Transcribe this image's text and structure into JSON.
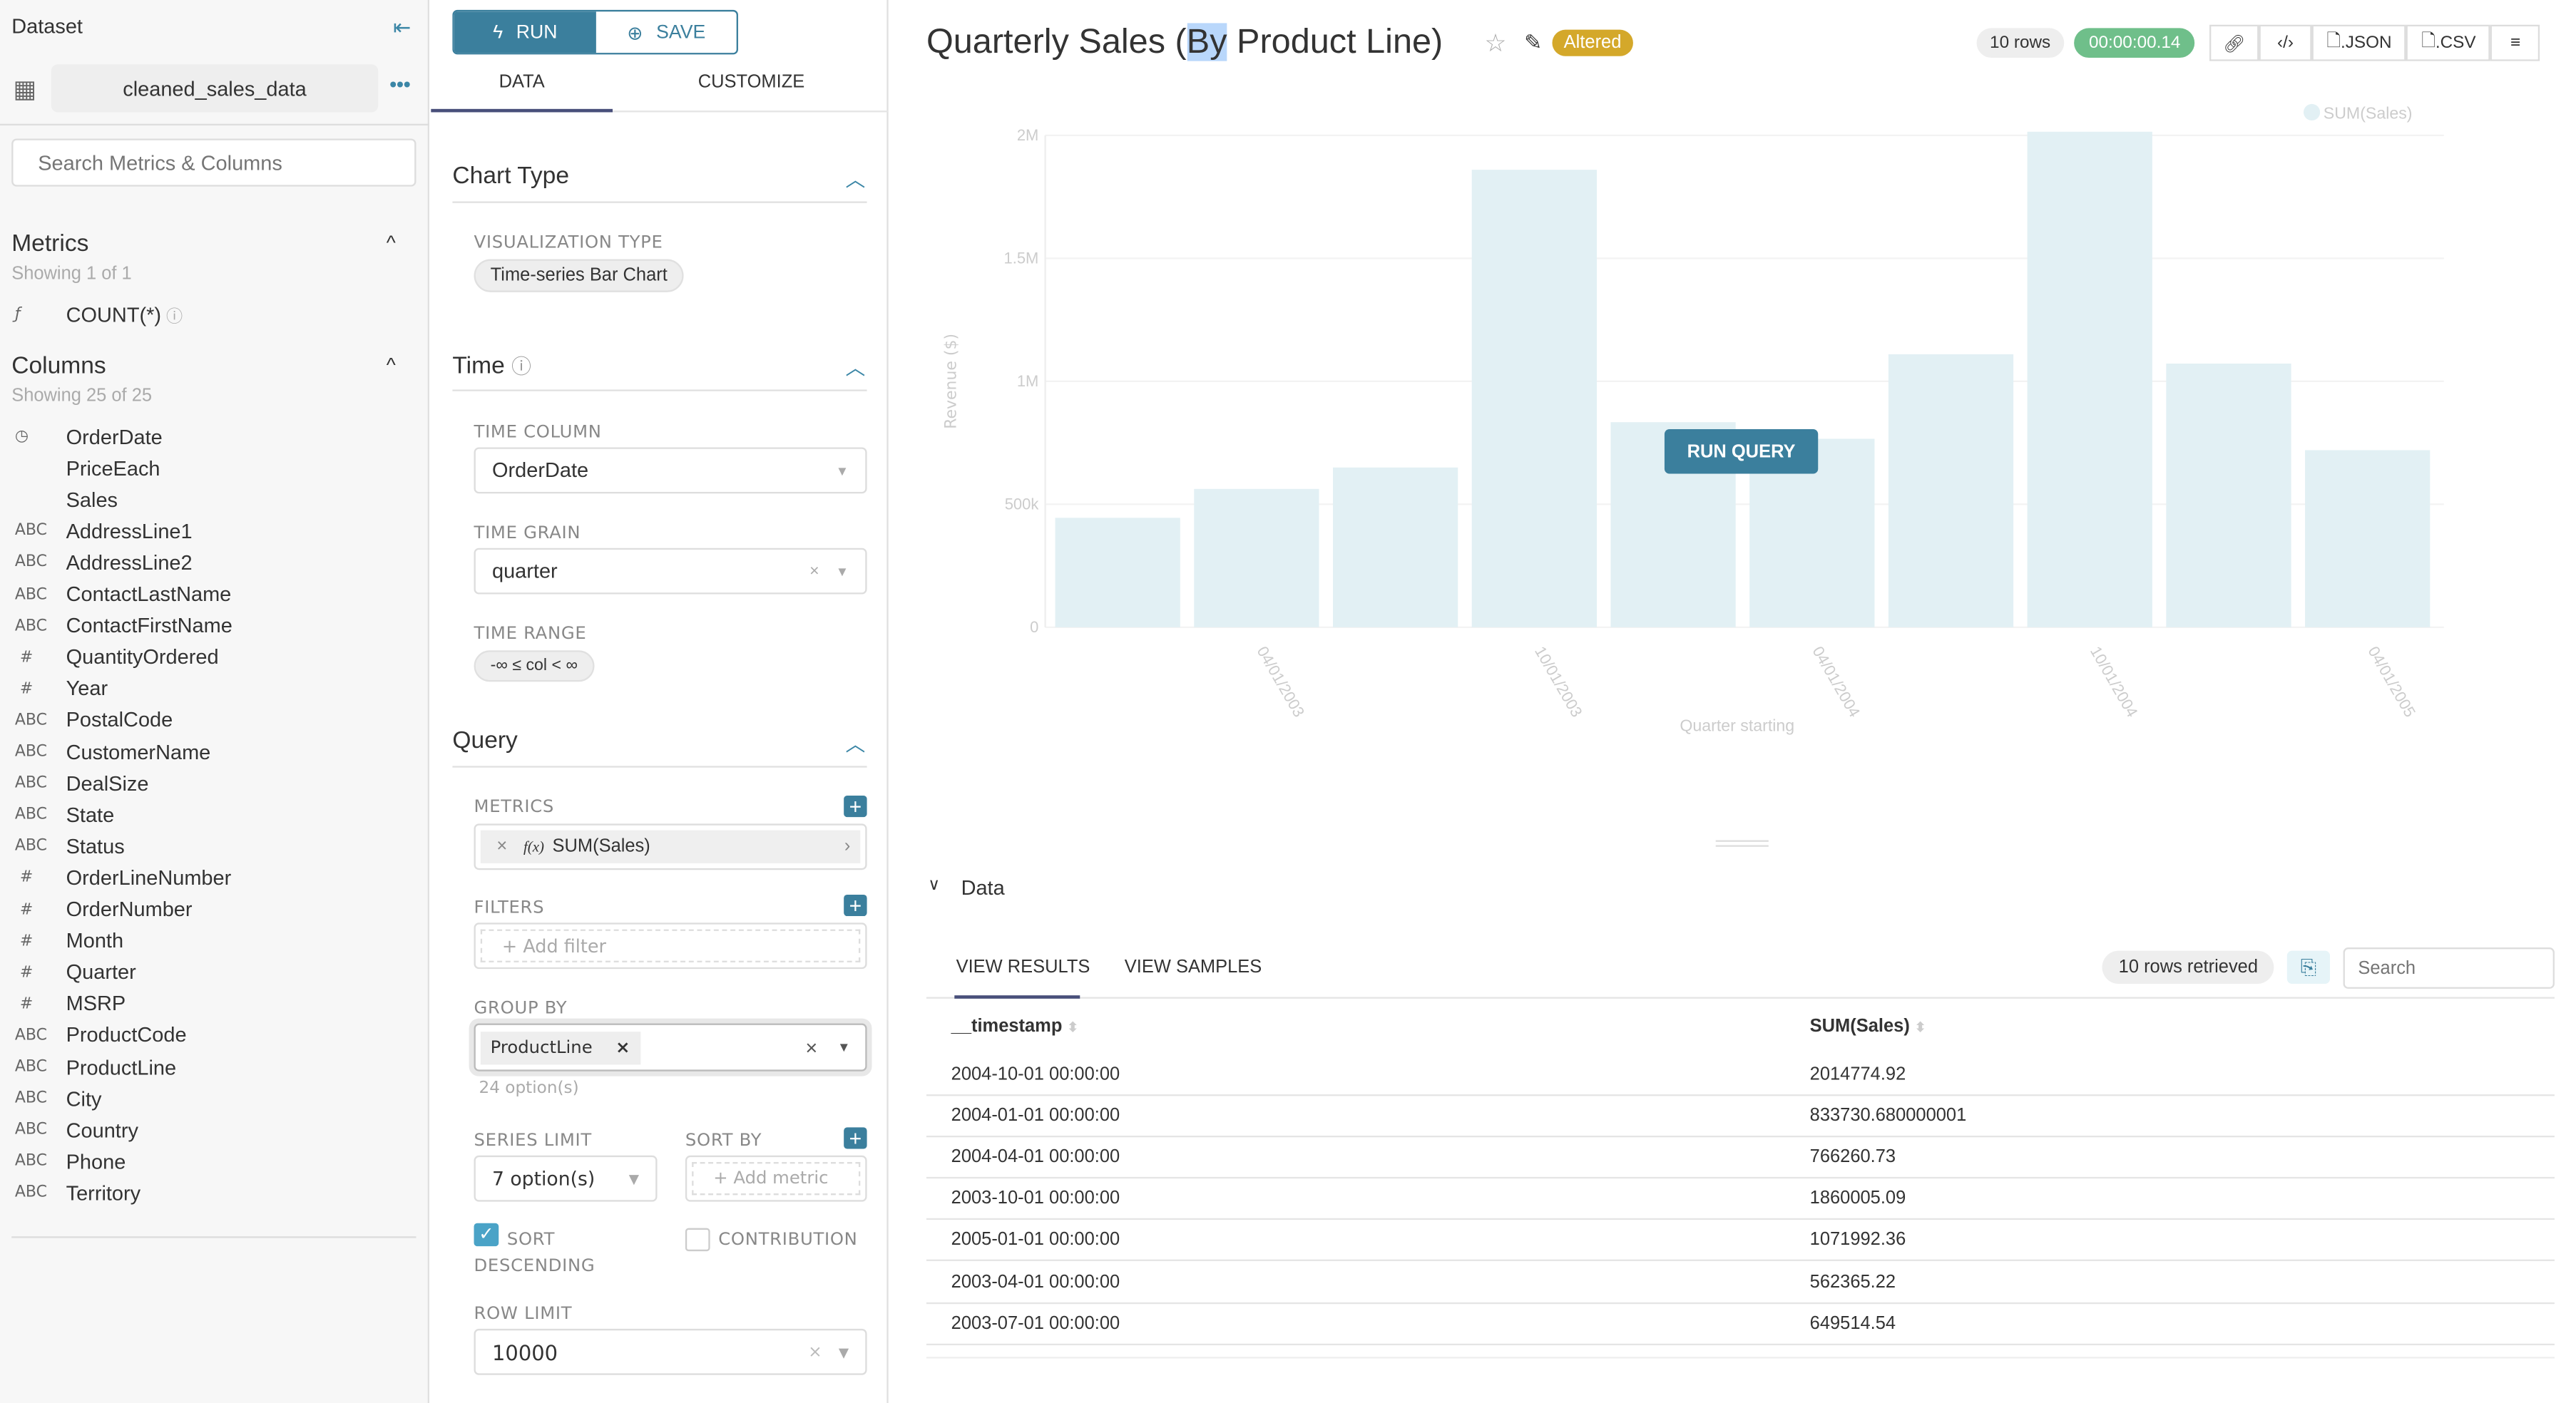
{
  "sidebar": {
    "title": "Dataset",
    "dataset_name": "cleaned_sales_data",
    "search_placeholder": "Search Metrics & Columns",
    "metrics": {
      "title": "Metrics",
      "showing": "Showing 1 of 1",
      "items": [
        {
          "label": "COUNT(*)",
          "type": "f"
        }
      ]
    },
    "columns": {
      "title": "Columns",
      "showing": "Showing 25 of 25",
      "items": [
        {
          "label": "OrderDate",
          "type": "clock"
        },
        {
          "label": "PriceEach",
          "type": ""
        },
        {
          "label": "Sales",
          "type": ""
        },
        {
          "label": "AddressLine1",
          "type": "ABC"
        },
        {
          "label": "AddressLine2",
          "type": "ABC"
        },
        {
          "label": "ContactLastName",
          "type": "ABC"
        },
        {
          "label": "ContactFirstName",
          "type": "ABC"
        },
        {
          "label": "QuantityOrdered",
          "type": "#"
        },
        {
          "label": "Year",
          "type": "#"
        },
        {
          "label": "PostalCode",
          "type": "ABC"
        },
        {
          "label": "CustomerName",
          "type": "ABC"
        },
        {
          "label": "DealSize",
          "type": "ABC"
        },
        {
          "label": "State",
          "type": "ABC"
        },
        {
          "label": "Status",
          "type": "ABC"
        },
        {
          "label": "OrderLineNumber",
          "type": "#"
        },
        {
          "label": "OrderNumber",
          "type": "#"
        },
        {
          "label": "Month",
          "type": "#"
        },
        {
          "label": "Quarter",
          "type": "#"
        },
        {
          "label": "MSRP",
          "type": "#"
        },
        {
          "label": "ProductCode",
          "type": "ABC"
        },
        {
          "label": "ProductLine",
          "type": "ABC"
        },
        {
          "label": "City",
          "type": "ABC"
        },
        {
          "label": "Country",
          "type": "ABC"
        },
        {
          "label": "Phone",
          "type": "ABC"
        },
        {
          "label": "Territory",
          "type": "ABC"
        }
      ]
    }
  },
  "controls": {
    "run": "RUN",
    "save": "SAVE",
    "tabs": [
      "DATA",
      "CUSTOMIZE"
    ],
    "chart_type": {
      "title": "Chart Type",
      "viz_label": "VISUALIZATION TYPE",
      "viz_value": "Time-series Bar Chart"
    },
    "time": {
      "title": "Time",
      "time_column_label": "TIME COLUMN",
      "time_column": "OrderDate",
      "time_grain_label": "TIME GRAIN",
      "time_grain": "quarter",
      "time_range_label": "TIME RANGE",
      "time_range": "-∞ ≤ col < ∞"
    },
    "query": {
      "title": "Query",
      "metrics_label": "METRICS",
      "metric": "SUM(Sales)",
      "metric_fx": "f(x)",
      "filters_label": "FILTERS",
      "add_filter": "Add filter",
      "group_by_label": "GROUP BY",
      "group_by_value": "ProductLine",
      "group_by_options": "24 option(s)",
      "series_limit_label": "SERIES LIMIT",
      "series_limit": "7 option(s)",
      "sort_by_label": "SORT BY",
      "add_metric": "Add metric",
      "sort_desc_label": "SORT DESCENDING",
      "sort_desc_checked": true,
      "contribution_label": "CONTRIBUTION",
      "contribution_checked": false,
      "row_limit_label": "ROW LIMIT",
      "row_limit": "10000"
    }
  },
  "header": {
    "title_pre": "Quarterly Sales (",
    "title_sel": "By",
    "title_post": " Product Line)",
    "altered": "Altered",
    "rows": "10 rows",
    "duration": "00:00:00.14",
    "json": ".JSON",
    "csv": ".CSV"
  },
  "chart_data": {
    "type": "bar",
    "xlabel": "Quarter starting",
    "ylabel": "Revenue ($)",
    "ylim": [
      0,
      2000000
    ],
    "grid": true,
    "legend": "top-right",
    "series": [
      {
        "name": "SUM(Sales)",
        "color": "#e2f0f4",
        "values": [
          445000,
          562365.22,
          649514.54,
          1860005.09,
          833730.68,
          766260.73,
          1110000,
          2014774.92,
          1071992.36,
          720000
        ]
      }
    ],
    "x": [
      "2003-01-01",
      "2003-04-01",
      "2003-07-01",
      "2003-10-01",
      "2004-01-01",
      "2004-04-01",
      "2004-07-01",
      "2004-10-01",
      "2005-01-01",
      "2005-04-01"
    ],
    "xticks": [
      "04/01/2003",
      "10/01/2003",
      "04/01/2004",
      "10/01/2004",
      "04/01/2005"
    ],
    "yticks": [
      "0",
      "500k",
      "1M",
      "1.5M",
      "2M"
    ]
  },
  "run_query": "RUN QUERY",
  "data_panel": {
    "title": "Data",
    "tabs": [
      "VIEW RESULTS",
      "VIEW SAMPLES"
    ],
    "rows_retrieved": "10 rows retrieved",
    "search_placeholder": "Search",
    "columns": [
      "__timestamp",
      "SUM(Sales)"
    ],
    "rows": [
      [
        "2004-10-01 00:00:00",
        "2014774.92"
      ],
      [
        "2004-01-01 00:00:00",
        "833730.680000001"
      ],
      [
        "2004-04-01 00:00:00",
        "766260.73"
      ],
      [
        "2003-10-01 00:00:00",
        "1860005.09"
      ],
      [
        "2005-01-01 00:00:00",
        "1071992.36"
      ],
      [
        "2003-04-01 00:00:00",
        "562365.22"
      ],
      [
        "2003-07-01 00:00:00",
        "649514.54"
      ]
    ]
  },
  "colors": {
    "accent": "#3b7f9d",
    "altered": "#d4a82a",
    "success": "#6fbf8a"
  }
}
